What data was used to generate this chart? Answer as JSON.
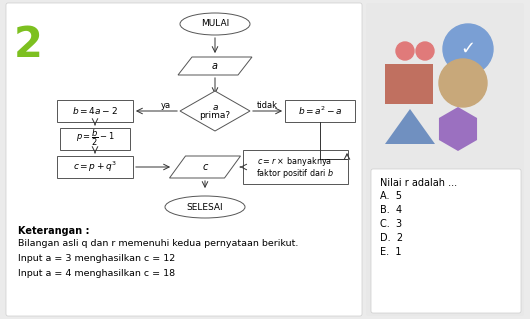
{
  "bg_color": "#ebebeb",
  "left_bg": "#ffffff",
  "right_bg": "#e8e8e8",
  "flowchart": {
    "mulai_text": "MULAI",
    "a_text": "a",
    "ya_text": "ya",
    "tidak_text": "tidak",
    "selesai_text": "SELESAI"
  },
  "keterangan_lines": [
    "Keterangan :",
    "Bilangan asli q dan r memenuhi kedua pernyataan berikut.",
    "Input a = 3 menghasilkan c = 12",
    "Input a = 4 menghasilkan c = 18"
  ],
  "shapes": {
    "dot1_color": "#e07a7a",
    "dot2_color": "#e07a7a",
    "bubble_color": "#7a9fd4",
    "rect_color": "#c07060",
    "oval_color": "#c8a87a",
    "triangle_color": "#7090c0",
    "hexagon_color": "#9b70c0"
  },
  "answer": {
    "title": "Nilai r adalah ...",
    "options": [
      "A.  5",
      "B.  4",
      "C.  3",
      "D.  2",
      "E.  1"
    ]
  },
  "number2_green": "#7dc020",
  "number2_orange": "#f09020"
}
